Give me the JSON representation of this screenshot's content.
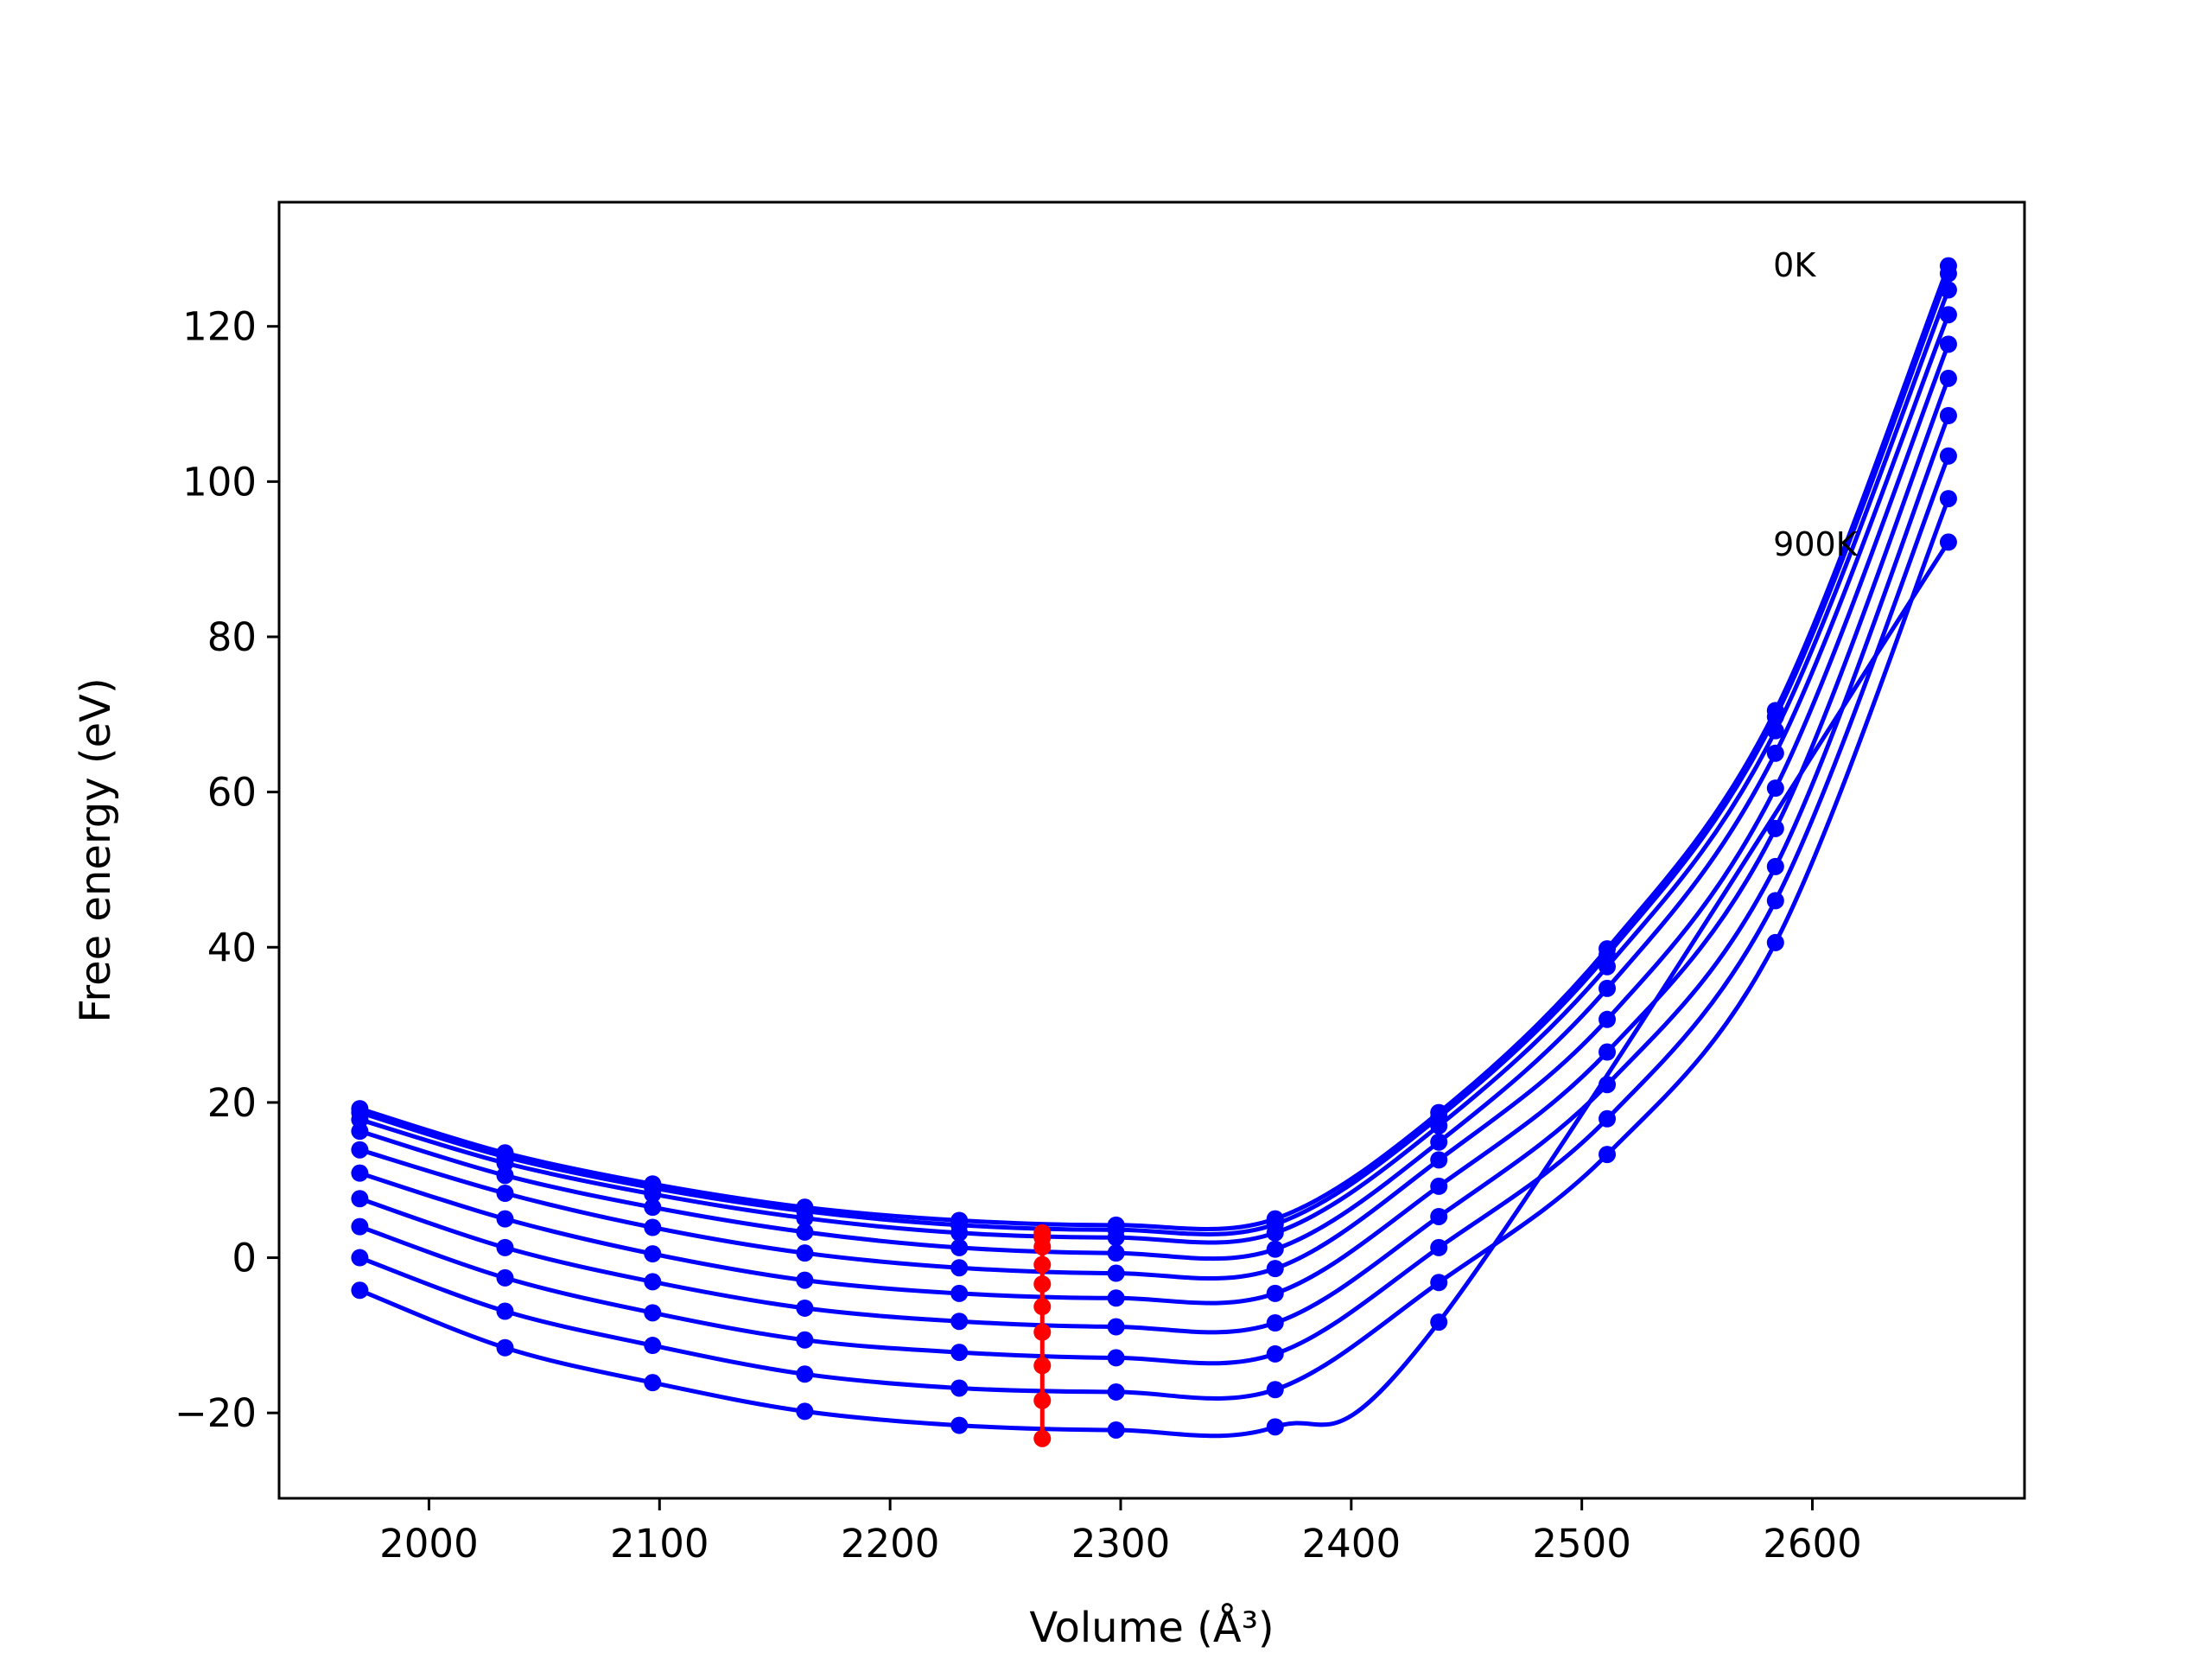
{
  "colors": {
    "curve": "#0000ff",
    "minimum": "#ff0000",
    "axis": "#000000",
    "background": "#ffffff"
  },
  "chart_data": {
    "type": "line",
    "xlabel": "Volume (Å³)",
    "ylabel": "Free energy (eV)",
    "xlim": [
      1935,
      2692
    ],
    "ylim": [
      -31,
      136
    ],
    "xticks": [
      2000,
      2100,
      2200,
      2300,
      2400,
      2500,
      2600
    ],
    "yticks": [
      -20,
      0,
      20,
      40,
      60,
      80,
      100,
      120
    ],
    "grid": false,
    "annotations": [
      {
        "text": "0K",
        "x": 2583,
        "y": 128
      },
      {
        "text": "900K",
        "x": 2583,
        "y": 92
      }
    ],
    "x": [
      1970,
      2033,
      2097,
      2163,
      2230,
      2298,
      2367,
      2438,
      2511,
      2584,
      2659
    ],
    "series": [
      {
        "values": [
          19.2,
          13.5,
          9.5,
          6.5,
          4.8,
          4.2,
          5.0,
          18.7,
          39.8,
          70.5,
          127.8
        ]
      },
      {
        "values": [
          18.7,
          13.0,
          9.0,
          6.0,
          4.2,
          3.6,
          4.3,
          18.1,
          39.0,
          69.7,
          126.8
        ]
      },
      {
        "values": [
          17.8,
          12.2,
          8.2,
          5.1,
          3.2,
          2.6,
          3.2,
          17.0,
          37.5,
          67.9,
          124.7
        ]
      },
      {
        "values": [
          16.3,
          10.6,
          6.5,
          3.3,
          1.3,
          0.6,
          1.1,
          14.9,
          34.7,
          65.0,
          121.5
        ]
      },
      {
        "values": [
          13.9,
          8.3,
          3.9,
          0.6,
          -1.3,
          -2.0,
          -1.4,
          12.6,
          30.7,
          60.5,
          117.7
        ]
      },
      {
        "values": [
          10.9,
          5.0,
          0.5,
          -2.9,
          -4.6,
          -5.2,
          -4.6,
          9.2,
          26.5,
          55.3,
          113.3
        ]
      },
      {
        "values": [
          7.6,
          1.3,
          -3.1,
          -6.5,
          -8.2,
          -8.9,
          -8.4,
          5.3,
          22.3,
          50.4,
          108.5
        ]
      },
      {
        "values": [
          4.0,
          -2.6,
          -7.1,
          -10.6,
          -12.2,
          -12.9,
          -12.4,
          1.3,
          17.9,
          46.0,
          103.3
        ]
      },
      {
        "values": [
          0.0,
          -6.9,
          -11.3,
          -15.0,
          -16.8,
          -17.3,
          -17.0,
          -3.2,
          13.3,
          40.6,
          97.8
        ]
      },
      {
        "values": [
          -4.2,
          -11.6,
          -16.1,
          -19.8,
          -21.6,
          -22.2,
          -21.8,
          -8.3,
          null,
          null,
          92.2
        ]
      }
    ],
    "minimum_points": {
      "x": 2266,
      "y": [
        3.2,
        2.6,
        1.4,
        -0.9,
        -3.4,
        -6.3,
        -9.6,
        -13.9,
        -18.4,
        -23.3
      ]
    }
  }
}
